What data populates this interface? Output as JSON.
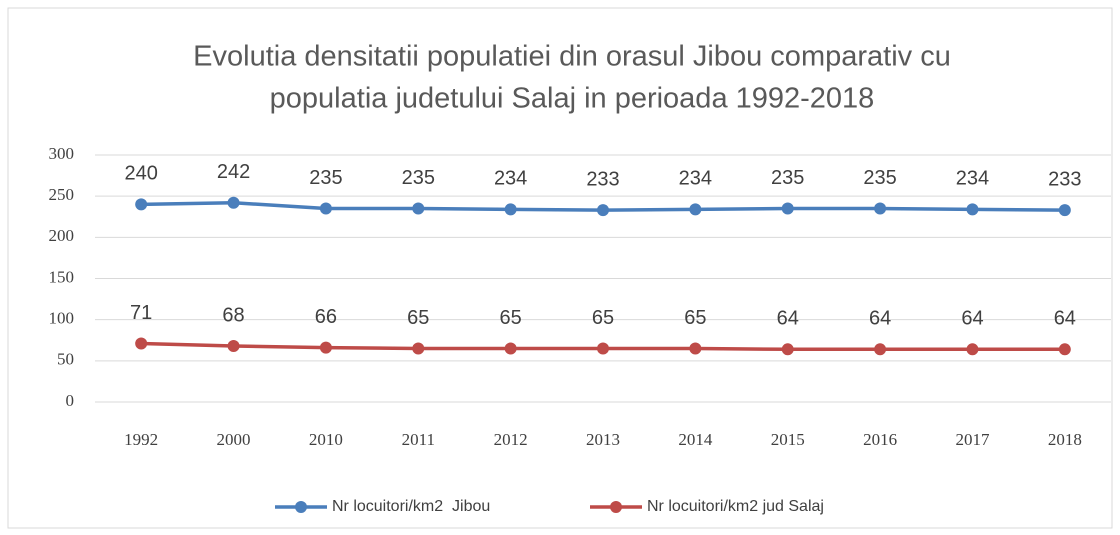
{
  "chart_data": {
    "type": "line",
    "title": [
      "Evolutia densitatii populatiei din orasul Jibou comparativ cu",
      "populatia judetului Salaj in perioada 1992-2018"
    ],
    "categories": [
      "1992",
      "2000",
      "2010",
      "2011",
      "2012",
      "2013",
      "2014",
      "2015",
      "2016",
      "2017",
      "2018"
    ],
    "series": [
      {
        "name": "Nr locuitori/km2  Jibou",
        "color": "#4a7ebb",
        "values": [
          240,
          242,
          235,
          235,
          234,
          233,
          234,
          235,
          235,
          234,
          233
        ]
      },
      {
        "name": "Nr locuitori/km2 jud Salaj",
        "color": "#be4b48",
        "values": [
          71,
          68,
          66,
          65,
          65,
          65,
          65,
          64,
          64,
          64,
          64
        ]
      }
    ],
    "ylim": [
      0,
      300
    ],
    "yticks": [
      0,
      50,
      100,
      150,
      200,
      250,
      300
    ],
    "grid": true,
    "legend": "bottom"
  }
}
